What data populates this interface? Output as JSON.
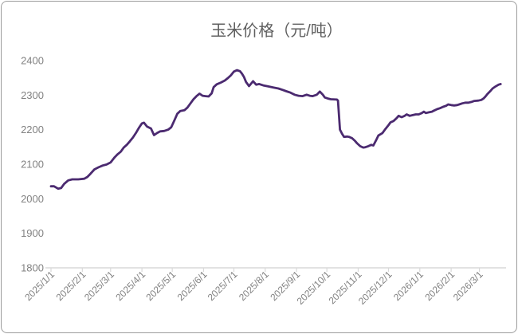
{
  "frame": {
    "background_color": "#ffffff",
    "border_color": "#9c9c9c"
  },
  "chart_data": {
    "type": "line",
    "title": "玉米价格（元/吨）",
    "title_color": "#5f5f5f",
    "line_color": "#4b2a70",
    "axis_color": "#d9d9d9",
    "tick_label_color": "#828282",
    "grid": "off",
    "legend": "none",
    "y_axis": {
      "min": 1800,
      "max": 2400,
      "tick_step": 100,
      "ticks": [
        1800,
        1900,
        2000,
        2100,
        2200,
        2300,
        2400
      ]
    },
    "x_axis": {
      "start": "2025/1/1",
      "end": "2026/3/1",
      "tick_labels": [
        "2025/1/1",
        "2025/2/1",
        "2025/3/1",
        "2025/4/1",
        "2025/5/1",
        "2025/6/1",
        "2025/7/1",
        "2025/8/1",
        "2025/9/1",
        "2025/10/1",
        "2025/11/1",
        "2025/12/1",
        "2026/1/1",
        "2026/2/1",
        "2026/3/1"
      ],
      "label_rotation_deg": -45
    },
    "series": [
      {
        "name": "玉米价格",
        "unit": "元/吨",
        "points": [
          [
            "2025/1/1",
            2036
          ],
          [
            "2025/1/4",
            2036
          ],
          [
            "2025/1/8",
            2029
          ],
          [
            "2025/1/11",
            2031
          ],
          [
            "2025/1/14",
            2043
          ],
          [
            "2025/1/18",
            2053
          ],
          [
            "2025/1/22",
            2056
          ],
          [
            "2025/1/28",
            2056
          ],
          [
            "2025/2/3",
            2058
          ],
          [
            "2025/2/6",
            2063
          ],
          [
            "2025/2/9",
            2072
          ],
          [
            "2025/2/13",
            2085
          ],
          [
            "2025/2/17",
            2091
          ],
          [
            "2025/2/21",
            2096
          ],
          [
            "2025/2/25",
            2099
          ],
          [
            "2025/3/1",
            2105
          ],
          [
            "2025/3/5",
            2120
          ],
          [
            "2025/3/8",
            2129
          ],
          [
            "2025/3/11",
            2136
          ],
          [
            "2025/3/14",
            2148
          ],
          [
            "2025/3/17",
            2156
          ],
          [
            "2025/3/20",
            2166
          ],
          [
            "2025/3/23",
            2177
          ],
          [
            "2025/3/26",
            2190
          ],
          [
            "2025/3/29",
            2205
          ],
          [
            "2025/4/1",
            2218
          ],
          [
            "2025/4/3",
            2220
          ],
          [
            "2025/4/6",
            2209
          ],
          [
            "2025/4/10",
            2203
          ],
          [
            "2025/4/13",
            2184
          ],
          [
            "2025/4/16",
            2190
          ],
          [
            "2025/4/19",
            2195
          ],
          [
            "2025/4/23",
            2196
          ],
          [
            "2025/4/27",
            2200
          ],
          [
            "2025/4/30",
            2207
          ],
          [
            "2025/5/3",
            2226
          ],
          [
            "2025/5/6",
            2246
          ],
          [
            "2025/5/9",
            2254
          ],
          [
            "2025/5/13",
            2256
          ],
          [
            "2025/5/16",
            2264
          ],
          [
            "2025/5/19",
            2276
          ],
          [
            "2025/5/22",
            2288
          ],
          [
            "2025/5/25",
            2297
          ],
          [
            "2025/5/28",
            2304
          ],
          [
            "2025/5/31",
            2298
          ],
          [
            "2025/6/3",
            2297
          ],
          [
            "2025/6/6",
            2296
          ],
          [
            "2025/6/9",
            2305
          ],
          [
            "2025/6/11",
            2323
          ],
          [
            "2025/6/14",
            2331
          ],
          [
            "2025/6/18",
            2336
          ],
          [
            "2025/6/22",
            2342
          ],
          [
            "2025/6/25",
            2349
          ],
          [
            "2025/6/28",
            2357
          ],
          [
            "2025/7/1",
            2368
          ],
          [
            "2025/7/4",
            2372
          ],
          [
            "2025/7/7",
            2369
          ],
          [
            "2025/7/9",
            2362
          ],
          [
            "2025/7/11",
            2352
          ],
          [
            "2025/7/13",
            2338
          ],
          [
            "2025/7/16",
            2326
          ],
          [
            "2025/7/20",
            2340
          ],
          [
            "2025/7/23",
            2330
          ],
          [
            "2025/7/26",
            2332
          ],
          [
            "2025/7/30",
            2328
          ],
          [
            "2025/8/4",
            2325
          ],
          [
            "2025/8/9",
            2322
          ],
          [
            "2025/8/14",
            2319
          ],
          [
            "2025/8/18",
            2315
          ],
          [
            "2025/8/22",
            2311
          ],
          [
            "2025/8/26",
            2307
          ],
          [
            "2025/8/30",
            2301
          ],
          [
            "2025/9/3",
            2298
          ],
          [
            "2025/9/7",
            2297
          ],
          [
            "2025/9/11",
            2301
          ],
          [
            "2025/9/14",
            2298
          ],
          [
            "2025/9/17",
            2297
          ],
          [
            "2025/9/21",
            2301
          ],
          [
            "2025/9/24",
            2310
          ],
          [
            "2025/9/27",
            2301
          ],
          [
            "2025/9/29",
            2293
          ],
          [
            "2025/10/2",
            2290
          ],
          [
            "2025/10/5",
            2288
          ],
          [
            "2025/10/11",
            2287
          ],
          [
            "2025/10/12",
            2284
          ],
          [
            "2025/10/14",
            2200
          ],
          [
            "2025/10/16",
            2188
          ],
          [
            "2025/10/18",
            2179
          ],
          [
            "2025/10/21",
            2180
          ],
          [
            "2025/10/23",
            2179
          ],
          [
            "2025/10/26",
            2175
          ],
          [
            "2025/10/29",
            2167
          ],
          [
            "2025/10/31",
            2160
          ],
          [
            "2025/11/3",
            2152
          ],
          [
            "2025/11/6",
            2148
          ],
          [
            "2025/11/8",
            2149
          ],
          [
            "2025/11/11",
            2152
          ],
          [
            "2025/11/14",
            2156
          ],
          [
            "2025/11/16",
            2154
          ],
          [
            "2025/11/19",
            2171
          ],
          [
            "2025/11/21",
            2183
          ],
          [
            "2025/11/25",
            2190
          ],
          [
            "2025/11/28",
            2202
          ],
          [
            "2025/12/1",
            2213
          ],
          [
            "2025/12/3",
            2221
          ],
          [
            "2025/12/6",
            2225
          ],
          [
            "2025/12/9",
            2233
          ],
          [
            "2025/12/11",
            2240
          ],
          [
            "2025/12/14",
            2236
          ],
          [
            "2025/12/17",
            2240
          ],
          [
            "2025/12/19",
            2244
          ],
          [
            "2025/12/22",
            2240
          ],
          [
            "2025/12/25",
            2242
          ],
          [
            "2025/12/28",
            2244
          ],
          [
            "2025/12/31",
            2244
          ],
          [
            "2026/1/3",
            2248
          ],
          [
            "2026/1/5",
            2252
          ],
          [
            "2026/1/7",
            2248
          ],
          [
            "2026/1/10",
            2250
          ],
          [
            "2026/1/13",
            2252
          ],
          [
            "2026/1/15",
            2255
          ],
          [
            "2026/1/18",
            2259
          ],
          [
            "2026/1/21",
            2262
          ],
          [
            "2026/1/24",
            2266
          ],
          [
            "2026/1/27",
            2269
          ],
          [
            "2026/1/29",
            2273
          ],
          [
            "2026/2/1",
            2271
          ],
          [
            "2026/2/4",
            2270
          ],
          [
            "2026/2/7",
            2271
          ],
          [
            "2026/2/9",
            2273
          ],
          [
            "2026/2/12",
            2276
          ],
          [
            "2026/2/15",
            2278
          ],
          [
            "2026/2/18",
            2278
          ],
          [
            "2026/2/21",
            2280
          ],
          [
            "2026/2/24",
            2283
          ],
          [
            "2026/2/28",
            2284
          ],
          [
            "2026/3/3",
            2286
          ],
          [
            "2026/3/5",
            2290
          ],
          [
            "2026/3/7",
            2296
          ],
          [
            "2026/3/9",
            2303
          ],
          [
            "2026/3/12",
            2312
          ],
          [
            "2026/3/14",
            2319
          ],
          [
            "2026/3/17",
            2325
          ],
          [
            "2026/3/20",
            2330
          ],
          [
            "2026/3/22",
            2332
          ]
        ]
      }
    ]
  }
}
